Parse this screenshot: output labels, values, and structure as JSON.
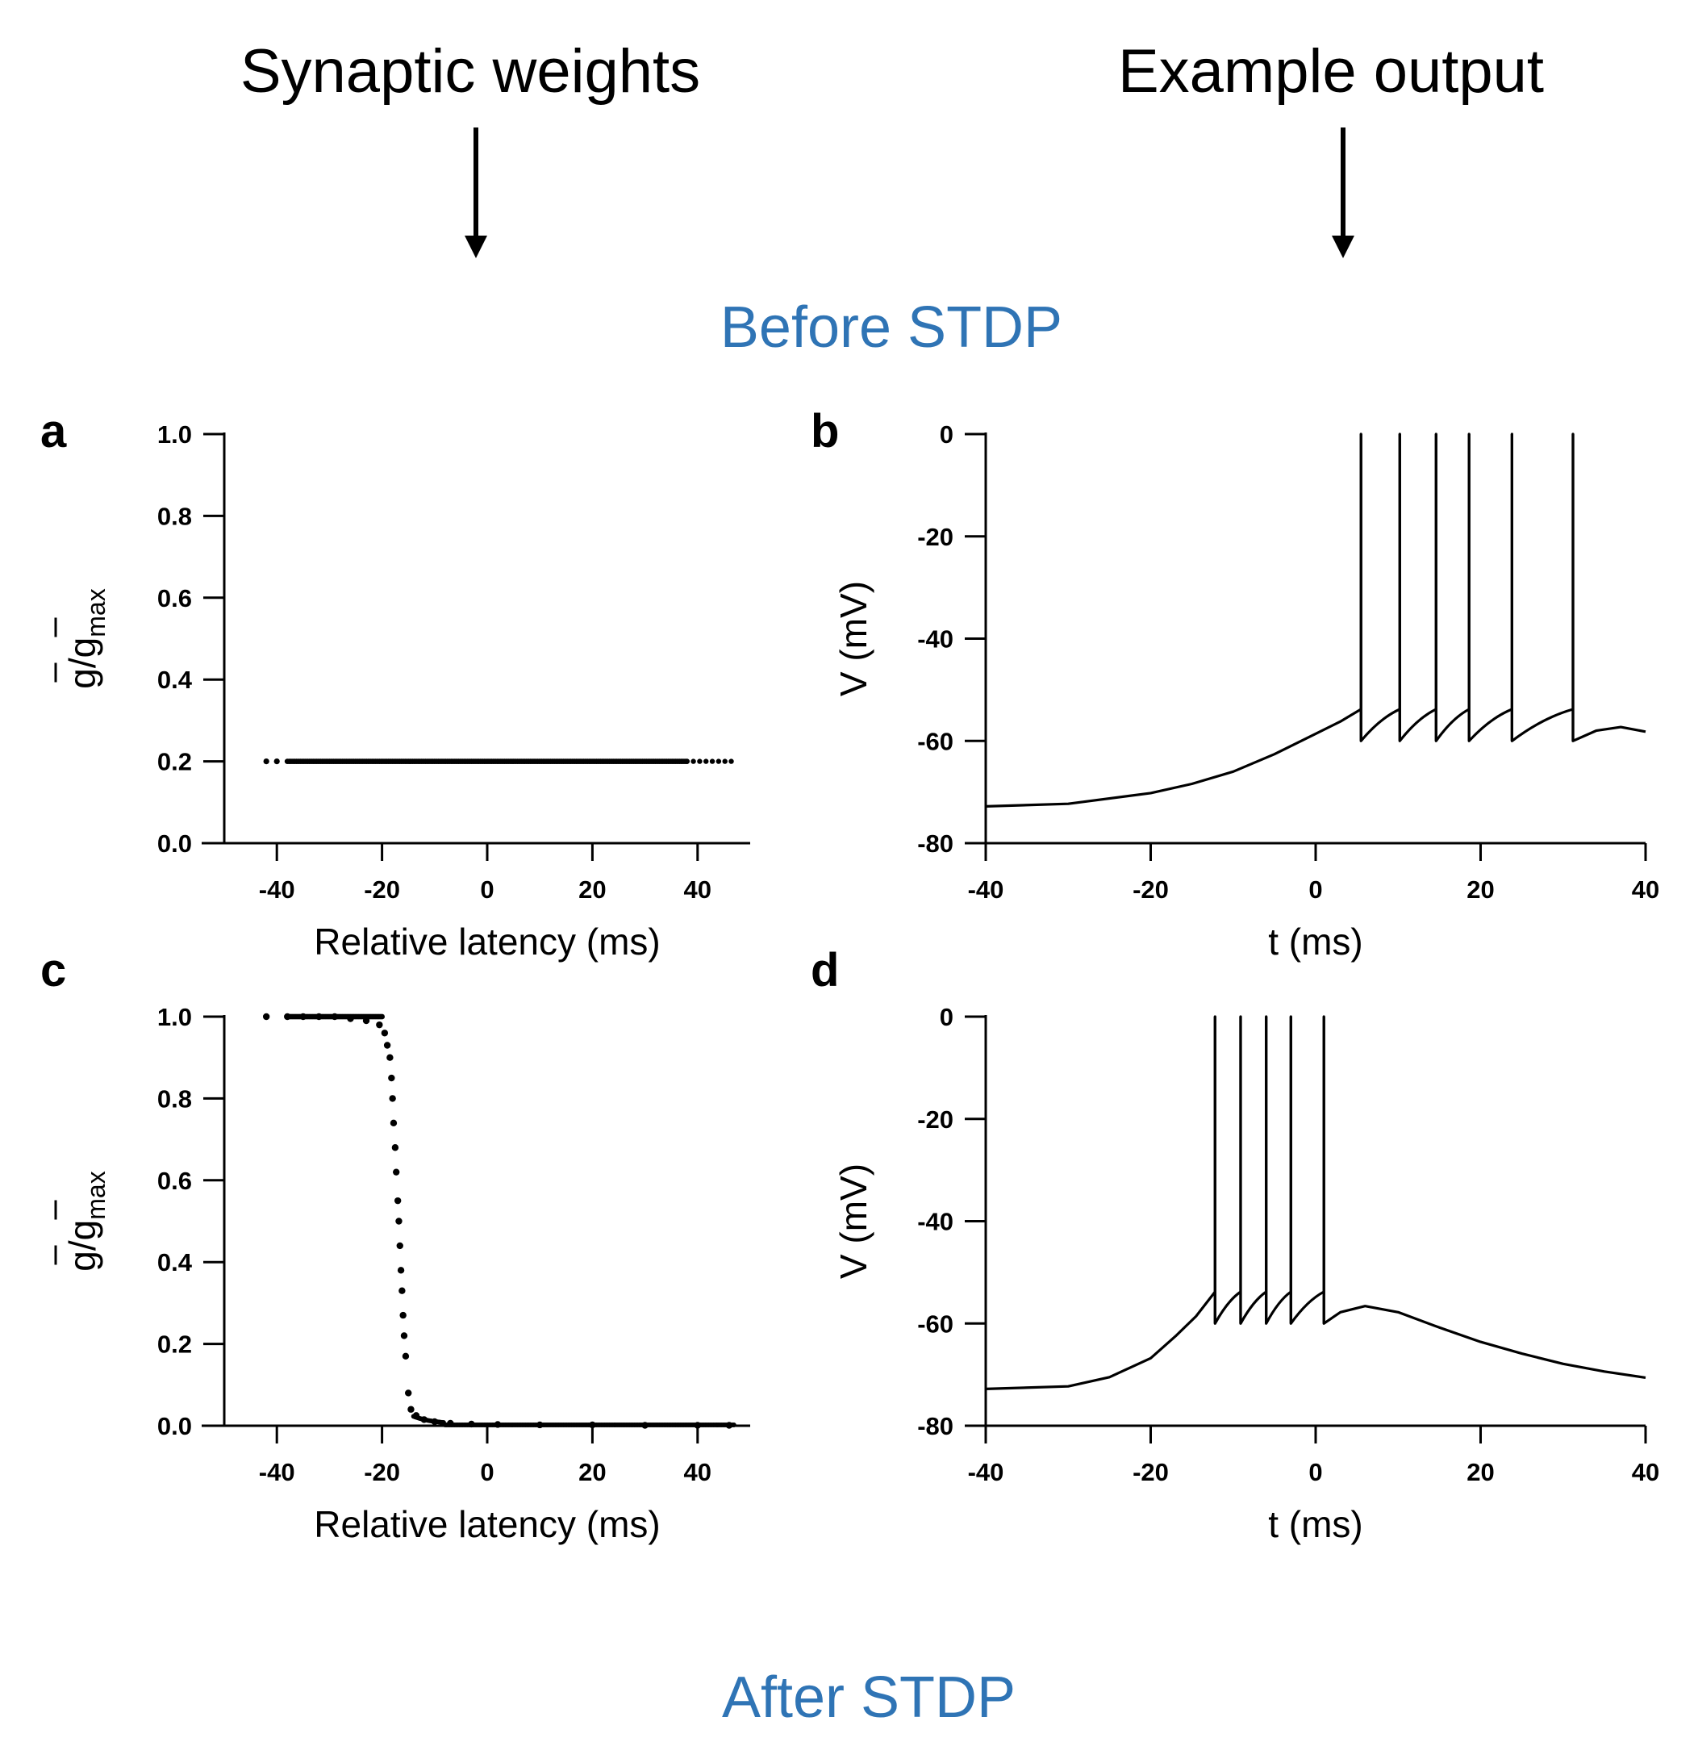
{
  "headers": {
    "left": "Synaptic weights",
    "right": "Example output",
    "before": "Before STDP",
    "after": "After STDP",
    "section_color": "#2F74B5"
  },
  "chart_data": [
    {
      "id": "a",
      "panel_label": "a",
      "type": "scatter",
      "xlabel": "Relative latency (ms)",
      "ylabel": "g/g_max",
      "ylabel_main": "g/g",
      "ylabel_sub": "max",
      "xlim": [
        -50,
        50
      ],
      "ylim": [
        0.0,
        1.0
      ],
      "xticks": [
        -40,
        -20,
        0,
        20,
        40
      ],
      "yticks": [
        0.0,
        0.2,
        0.4,
        0.6,
        0.8,
        1.0
      ],
      "yticklabels": [
        "0.0",
        "0.2",
        "0.4",
        "0.6",
        "0.8",
        "1.0"
      ],
      "series": [
        {
          "x_range": [
            -42,
            47
          ],
          "y_constant": 0.2,
          "dense_range": [
            -38,
            38
          ]
        }
      ]
    },
    {
      "id": "b",
      "panel_label": "b",
      "type": "line",
      "xlabel": "t (ms)",
      "ylabel": "V (mV)",
      "xlim": [
        -40,
        40
      ],
      "ylim": [
        -80,
        0
      ],
      "xticks": [
        -40,
        -20,
        0,
        20,
        40
      ],
      "yticks": [
        -80,
        -60,
        -40,
        -20,
        0
      ],
      "yticklabels": [
        "-80",
        "-60",
        "-40",
        "-20",
        "0"
      ],
      "series": [
        {
          "points": [
            [
              -40,
              -72.8
            ],
            [
              -30,
              -72.3
            ],
            [
              -20,
              -70.2
            ],
            [
              -15,
              -68.4
            ],
            [
              -10,
              -66
            ],
            [
              -5,
              -62.6
            ],
            [
              0,
              -58.6
            ],
            [
              3,
              -56.2
            ],
            [
              5.5,
              -53.8
            ]
          ],
          "spike_times": [
            5.5,
            10.2,
            14.6,
            18.6,
            23.8,
            31.2
          ],
          "spike_peak": 0,
          "reset_v": -60,
          "prespike_v": -53.8,
          "tail": [
            [
              31.2,
              -60
            ],
            [
              34,
              -58
            ],
            [
              37,
              -57.3
            ],
            [
              40,
              -58.2
            ]
          ]
        }
      ]
    },
    {
      "id": "c",
      "panel_label": "c",
      "type": "scatter",
      "xlabel": "Relative latency (ms)",
      "ylabel": "g/g_max",
      "ylabel_main": "g/g",
      "ylabel_sub": "max",
      "xlim": [
        -50,
        50
      ],
      "ylim": [
        0.0,
        1.0
      ],
      "xticks": [
        -40,
        -20,
        0,
        20,
        40
      ],
      "yticks": [
        0.0,
        0.2,
        0.4,
        0.6,
        0.8,
        1.0
      ],
      "yticklabels": [
        "0.0",
        "0.2",
        "0.4",
        "0.6",
        "0.8",
        "1.0"
      ],
      "series": [
        {
          "points": [
            [
              -42,
              1.0
            ],
            [
              -38,
              1.0
            ],
            [
              -35,
              1.0
            ],
            [
              -32,
              1.0
            ],
            [
              -29,
              1.0
            ],
            [
              -26,
              0.995
            ],
            [
              -23,
              0.99
            ],
            [
              -20.5,
              0.98
            ],
            [
              -19.5,
              0.96
            ],
            [
              -19,
              0.93
            ],
            [
              -18.5,
              0.9
            ],
            [
              -18.2,
              0.85
            ],
            [
              -18,
              0.8
            ],
            [
              -17.8,
              0.74
            ],
            [
              -17.5,
              0.68
            ],
            [
              -17.3,
              0.62
            ],
            [
              -17,
              0.55
            ],
            [
              -16.8,
              0.5
            ],
            [
              -16.6,
              0.44
            ],
            [
              -16.4,
              0.38
            ],
            [
              -16.2,
              0.33
            ],
            [
              -16,
              0.27
            ],
            [
              -15.8,
              0.22
            ],
            [
              -15.5,
              0.17
            ],
            [
              -15,
              0.08
            ],
            [
              -14.5,
              0.04
            ],
            [
              -13.5,
              0.025
            ],
            [
              -12,
              0.015
            ],
            [
              -10,
              0.01
            ],
            [
              -7,
              0.006
            ],
            [
              -3,
              0.004
            ],
            [
              2,
              0.003
            ],
            [
              10,
              0.002
            ],
            [
              20,
              0.002
            ],
            [
              30,
              0.001
            ],
            [
              40,
              0.001
            ],
            [
              46,
              0.001
            ]
          ]
        }
      ]
    },
    {
      "id": "d",
      "panel_label": "d",
      "type": "line",
      "xlabel": "t (ms)",
      "ylabel": "V (mV)",
      "xlim": [
        -40,
        40
      ],
      "ylim": [
        -80,
        0
      ],
      "xticks": [
        -40,
        -20,
        0,
        20,
        40
      ],
      "yticks": [
        -80,
        -60,
        -40,
        -20,
        0
      ],
      "yticklabels": [
        "-80",
        "-60",
        "-40",
        "-20",
        "0"
      ],
      "series": [
        {
          "points": [
            [
              -40,
              -72.8
            ],
            [
              -30,
              -72.3
            ],
            [
              -25,
              -70.5
            ],
            [
              -20,
              -66.8
            ],
            [
              -17,
              -62.5
            ],
            [
              -14.5,
              -58.6
            ],
            [
              -12.2,
              -53.8
            ]
          ],
          "spike_times": [
            -12.2,
            -9.1,
            -6.0,
            -3.0,
            1.0
          ],
          "spike_peak": 0,
          "reset_v": -60,
          "prespike_v": -53.8,
          "tail": [
            [
              1.0,
              -60
            ],
            [
              3,
              -57.8
            ],
            [
              6,
              -56.6
            ],
            [
              10,
              -57.8
            ],
            [
              15,
              -60.8
            ],
            [
              20,
              -63.6
            ],
            [
              25,
              -65.9
            ],
            [
              30,
              -67.9
            ],
            [
              35,
              -69.4
            ],
            [
              40,
              -70.6
            ]
          ]
        }
      ]
    }
  ]
}
